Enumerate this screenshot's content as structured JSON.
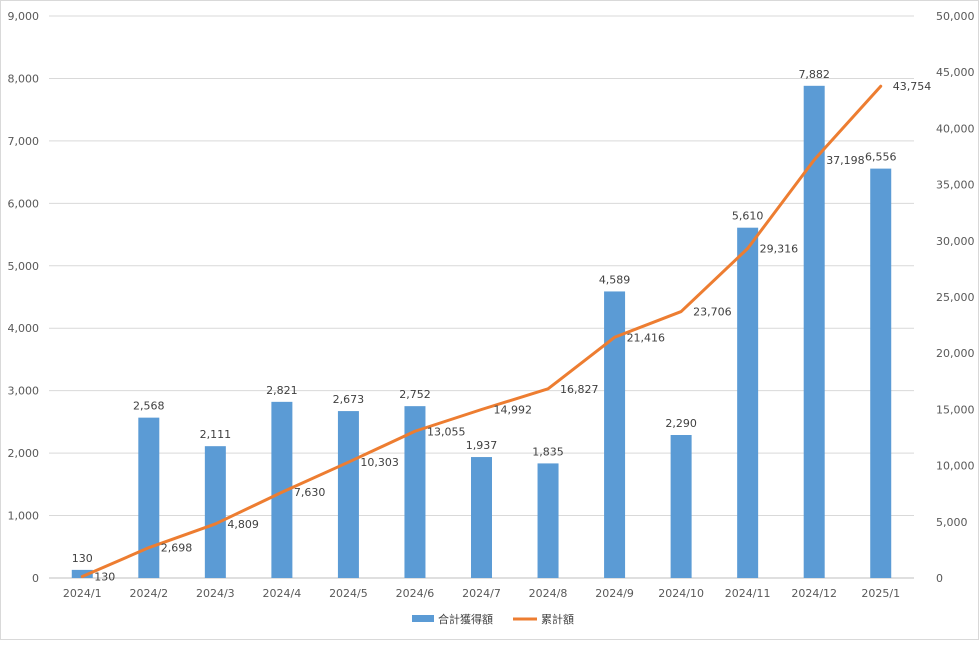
{
  "chart_data": {
    "type": "bar+line",
    "title": "",
    "xlabel": "",
    "ylabel": "",
    "categories": [
      "2024/1",
      "2024/2",
      "2024/3",
      "2024/4",
      "2024/5",
      "2024/6",
      "2024/7",
      "2024/8",
      "2024/9",
      "2024/10",
      "2024/11",
      "2024/12",
      "2025/1"
    ],
    "series": [
      {
        "name": "合計獲得額",
        "kind": "bar",
        "axis": "left",
        "color": "#5b9bd5",
        "values": [
          130,
          2568,
          2111,
          2821,
          2673,
          2752,
          1937,
          1835,
          4589,
          2290,
          5610,
          7882,
          6556
        ]
      },
      {
        "name": "累計額",
        "kind": "line",
        "axis": "right",
        "color": "#ed7d31",
        "values": [
          130,
          2698,
          4809,
          7630,
          10303,
          13055,
          14992,
          16827,
          21416,
          23706,
          29316,
          37198,
          43754
        ]
      }
    ],
    "y_left": {
      "min": 0,
      "max": 9000,
      "step": 1000
    },
    "y_right": {
      "min": 0,
      "max": 50000,
      "step": 5000
    },
    "grid": true,
    "legend": "bottom"
  }
}
